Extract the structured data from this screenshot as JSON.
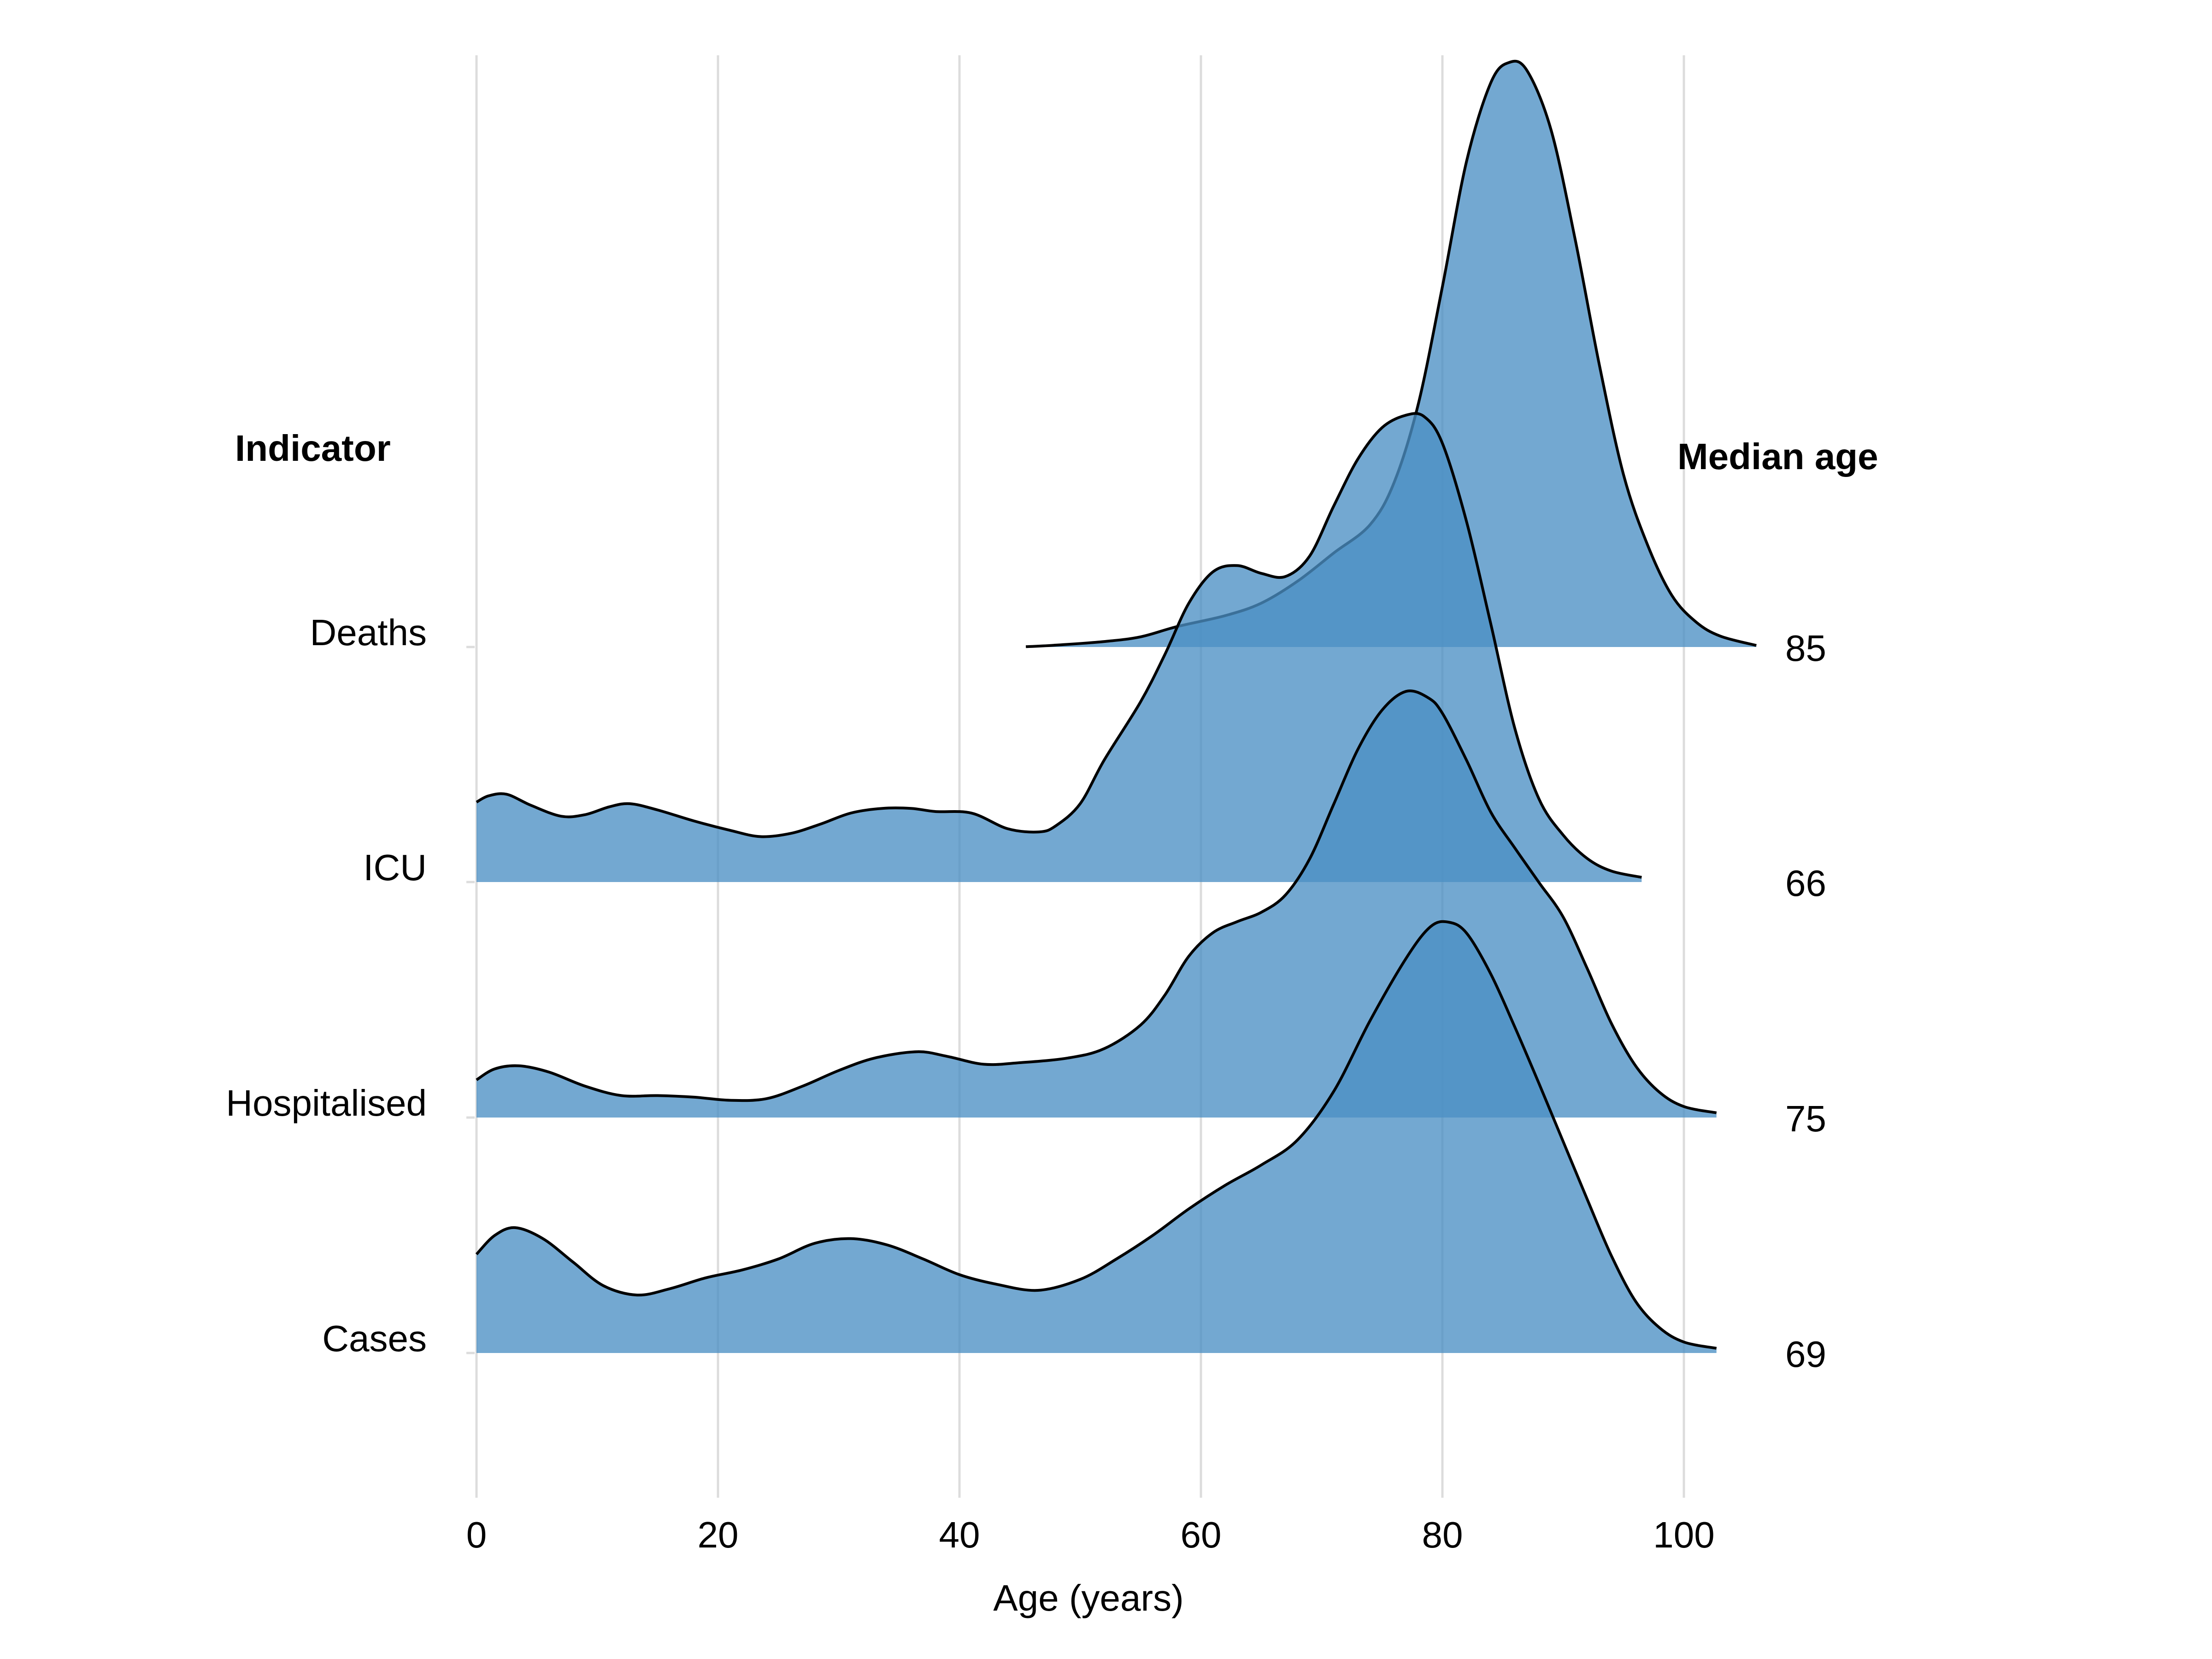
{
  "chart_data": {
    "type": "ridgeline",
    "title": "",
    "xlabel": "Age (years)",
    "left_header": "Indicator",
    "right_header": "Median age",
    "xlim": [
      0,
      106
    ],
    "x_ticks": [
      0,
      20,
      40,
      60,
      80,
      100
    ],
    "fill_color": "#4b8fc4",
    "fill_opacity": 0.78,
    "stroke_color": "#000000",
    "grid": true,
    "series": [
      {
        "name": "Deaths",
        "median_age": "85",
        "points": [
          [
            45.5,
            0.002
          ],
          [
            48,
            0.012
          ],
          [
            52,
            0.035
          ],
          [
            55,
            0.065
          ],
          [
            58,
            0.13
          ],
          [
            62,
            0.2
          ],
          [
            65,
            0.28
          ],
          [
            68,
            0.42
          ],
          [
            71,
            0.6
          ],
          [
            74,
            0.78
          ],
          [
            76,
            1.05
          ],
          [
            78,
            1.55
          ],
          [
            80,
            2.3
          ],
          [
            82,
            3.1
          ],
          [
            84,
            3.6
          ],
          [
            85.5,
            3.73
          ],
          [
            87,
            3.68
          ],
          [
            89,
            3.3
          ],
          [
            91,
            2.6
          ],
          [
            93,
            1.8
          ],
          [
            95,
            1.1
          ],
          [
            97,
            0.65
          ],
          [
            99,
            0.33
          ],
          [
            101,
            0.16
          ],
          [
            103,
            0.07
          ],
          [
            106,
            0.01
          ]
        ]
      },
      {
        "name": "ICU",
        "median_age": "66",
        "points": [
          [
            0,
            0.51
          ],
          [
            1,
            0.55
          ],
          [
            2.5,
            0.56
          ],
          [
            4.5,
            0.49
          ],
          [
            7,
            0.42
          ],
          [
            9,
            0.43
          ],
          [
            11,
            0.48
          ],
          [
            12.7,
            0.5
          ],
          [
            15,
            0.46
          ],
          [
            18,
            0.39
          ],
          [
            21,
            0.33
          ],
          [
            23.5,
            0.29
          ],
          [
            26,
            0.31
          ],
          [
            28.5,
            0.37
          ],
          [
            31,
            0.44
          ],
          [
            33.6,
            0.47
          ],
          [
            36,
            0.47
          ],
          [
            38,
            0.45
          ],
          [
            41,
            0.44
          ],
          [
            44,
            0.34
          ],
          [
            46.6,
            0.32
          ],
          [
            48,
            0.36
          ],
          [
            50,
            0.5
          ],
          [
            52,
            0.78
          ],
          [
            55,
            1.15
          ],
          [
            57,
            1.45
          ],
          [
            59,
            1.78
          ],
          [
            61,
            1.98
          ],
          [
            63,
            2.02
          ],
          [
            65,
            1.97
          ],
          [
            67,
            1.95
          ],
          [
            69,
            2.08
          ],
          [
            71,
            2.4
          ],
          [
            73,
            2.7
          ],
          [
            75,
            2.9
          ],
          [
            77,
            2.98
          ],
          [
            78.5,
            2.97
          ],
          [
            80,
            2.8
          ],
          [
            82,
            2.3
          ],
          [
            84,
            1.65
          ],
          [
            86,
            0.98
          ],
          [
            88,
            0.53
          ],
          [
            90,
            0.3
          ],
          [
            92,
            0.15
          ],
          [
            94,
            0.07
          ],
          [
            96.5,
            0.03
          ]
        ]
      },
      {
        "name": "Hospitalised",
        "median_age": "75",
        "points": [
          [
            0,
            0.24
          ],
          [
            1.5,
            0.31
          ],
          [
            3.5,
            0.33
          ],
          [
            6,
            0.29
          ],
          [
            9,
            0.2
          ],
          [
            12,
            0.14
          ],
          [
            15,
            0.14
          ],
          [
            18,
            0.13
          ],
          [
            21,
            0.11
          ],
          [
            24,
            0.12
          ],
          [
            27,
            0.2
          ],
          [
            30,
            0.3
          ],
          [
            33,
            0.38
          ],
          [
            36.5,
            0.42
          ],
          [
            39,
            0.39
          ],
          [
            42,
            0.34
          ],
          [
            45,
            0.35
          ],
          [
            49,
            0.38
          ],
          [
            52,
            0.44
          ],
          [
            55,
            0.59
          ],
          [
            57,
            0.78
          ],
          [
            59,
            1.03
          ],
          [
            61,
            1.18
          ],
          [
            63,
            1.25
          ],
          [
            65,
            1.31
          ],
          [
            67,
            1.42
          ],
          [
            69,
            1.65
          ],
          [
            71,
            2.0
          ],
          [
            73,
            2.35
          ],
          [
            75,
            2.6
          ],
          [
            77,
            2.72
          ],
          [
            78.8,
            2.68
          ],
          [
            80,
            2.58
          ],
          [
            82,
            2.28
          ],
          [
            84,
            1.95
          ],
          [
            86,
            1.72
          ],
          [
            88,
            1.5
          ],
          [
            90,
            1.28
          ],
          [
            92,
            0.95
          ],
          [
            94,
            0.6
          ],
          [
            96,
            0.33
          ],
          [
            98,
            0.16
          ],
          [
            100,
            0.07
          ],
          [
            102.7,
            0.03
          ]
        ]
      },
      {
        "name": "Cases",
        "median_age": "69",
        "points": [
          [
            0,
            0.63
          ],
          [
            1.5,
            0.75
          ],
          [
            3.2,
            0.8
          ],
          [
            5.5,
            0.73
          ],
          [
            8,
            0.58
          ],
          [
            10.5,
            0.43
          ],
          [
            13.3,
            0.37
          ],
          [
            16,
            0.41
          ],
          [
            19,
            0.48
          ],
          [
            22,
            0.53
          ],
          [
            25,
            0.6
          ],
          [
            28,
            0.7
          ],
          [
            31,
            0.73
          ],
          [
            34,
            0.69
          ],
          [
            37,
            0.6
          ],
          [
            40,
            0.5
          ],
          [
            43,
            0.44
          ],
          [
            46.5,
            0.4
          ],
          [
            50,
            0.47
          ],
          [
            53,
            0.6
          ],
          [
            56,
            0.75
          ],
          [
            59,
            0.92
          ],
          [
            62,
            1.07
          ],
          [
            65,
            1.2
          ],
          [
            68,
            1.36
          ],
          [
            71,
            1.67
          ],
          [
            74,
            2.12
          ],
          [
            77,
            2.52
          ],
          [
            79,
            2.72
          ],
          [
            80.5,
            2.75
          ],
          [
            82,
            2.68
          ],
          [
            84,
            2.42
          ],
          [
            86,
            2.08
          ],
          [
            88,
            1.72
          ],
          [
            90,
            1.35
          ],
          [
            92,
            0.98
          ],
          [
            94,
            0.62
          ],
          [
            96,
            0.33
          ],
          [
            98,
            0.16
          ],
          [
            100,
            0.07
          ],
          [
            102.7,
            0.03
          ]
        ]
      }
    ]
  }
}
